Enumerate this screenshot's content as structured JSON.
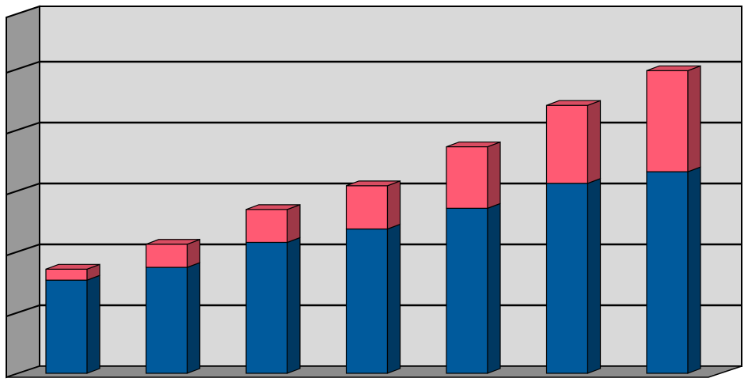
{
  "chart_data": {
    "type": "bar",
    "stacked": true,
    "three_d": true,
    "categories": [
      "",
      "",
      "",
      "",
      "",
      "",
      ""
    ],
    "series": [
      {
        "values": [
          1.53,
          1.74,
          2.15,
          2.37,
          2.71,
          3.12,
          3.31
        ],
        "color": "#005A9C"
      },
      {
        "values": [
          0.18,
          0.38,
          0.54,
          0.71,
          1.01,
          1.28,
          1.66
        ],
        "color": "#FF5A73"
      }
    ],
    "ylim": [
      0,
      6
    ],
    "grid": true,
    "legend": "none",
    "colors": {
      "plot_back_wall": "#D9D9D9",
      "side_wall": "#999999",
      "floor": "#8C8C8C",
      "gridline": "#000000"
    }
  }
}
